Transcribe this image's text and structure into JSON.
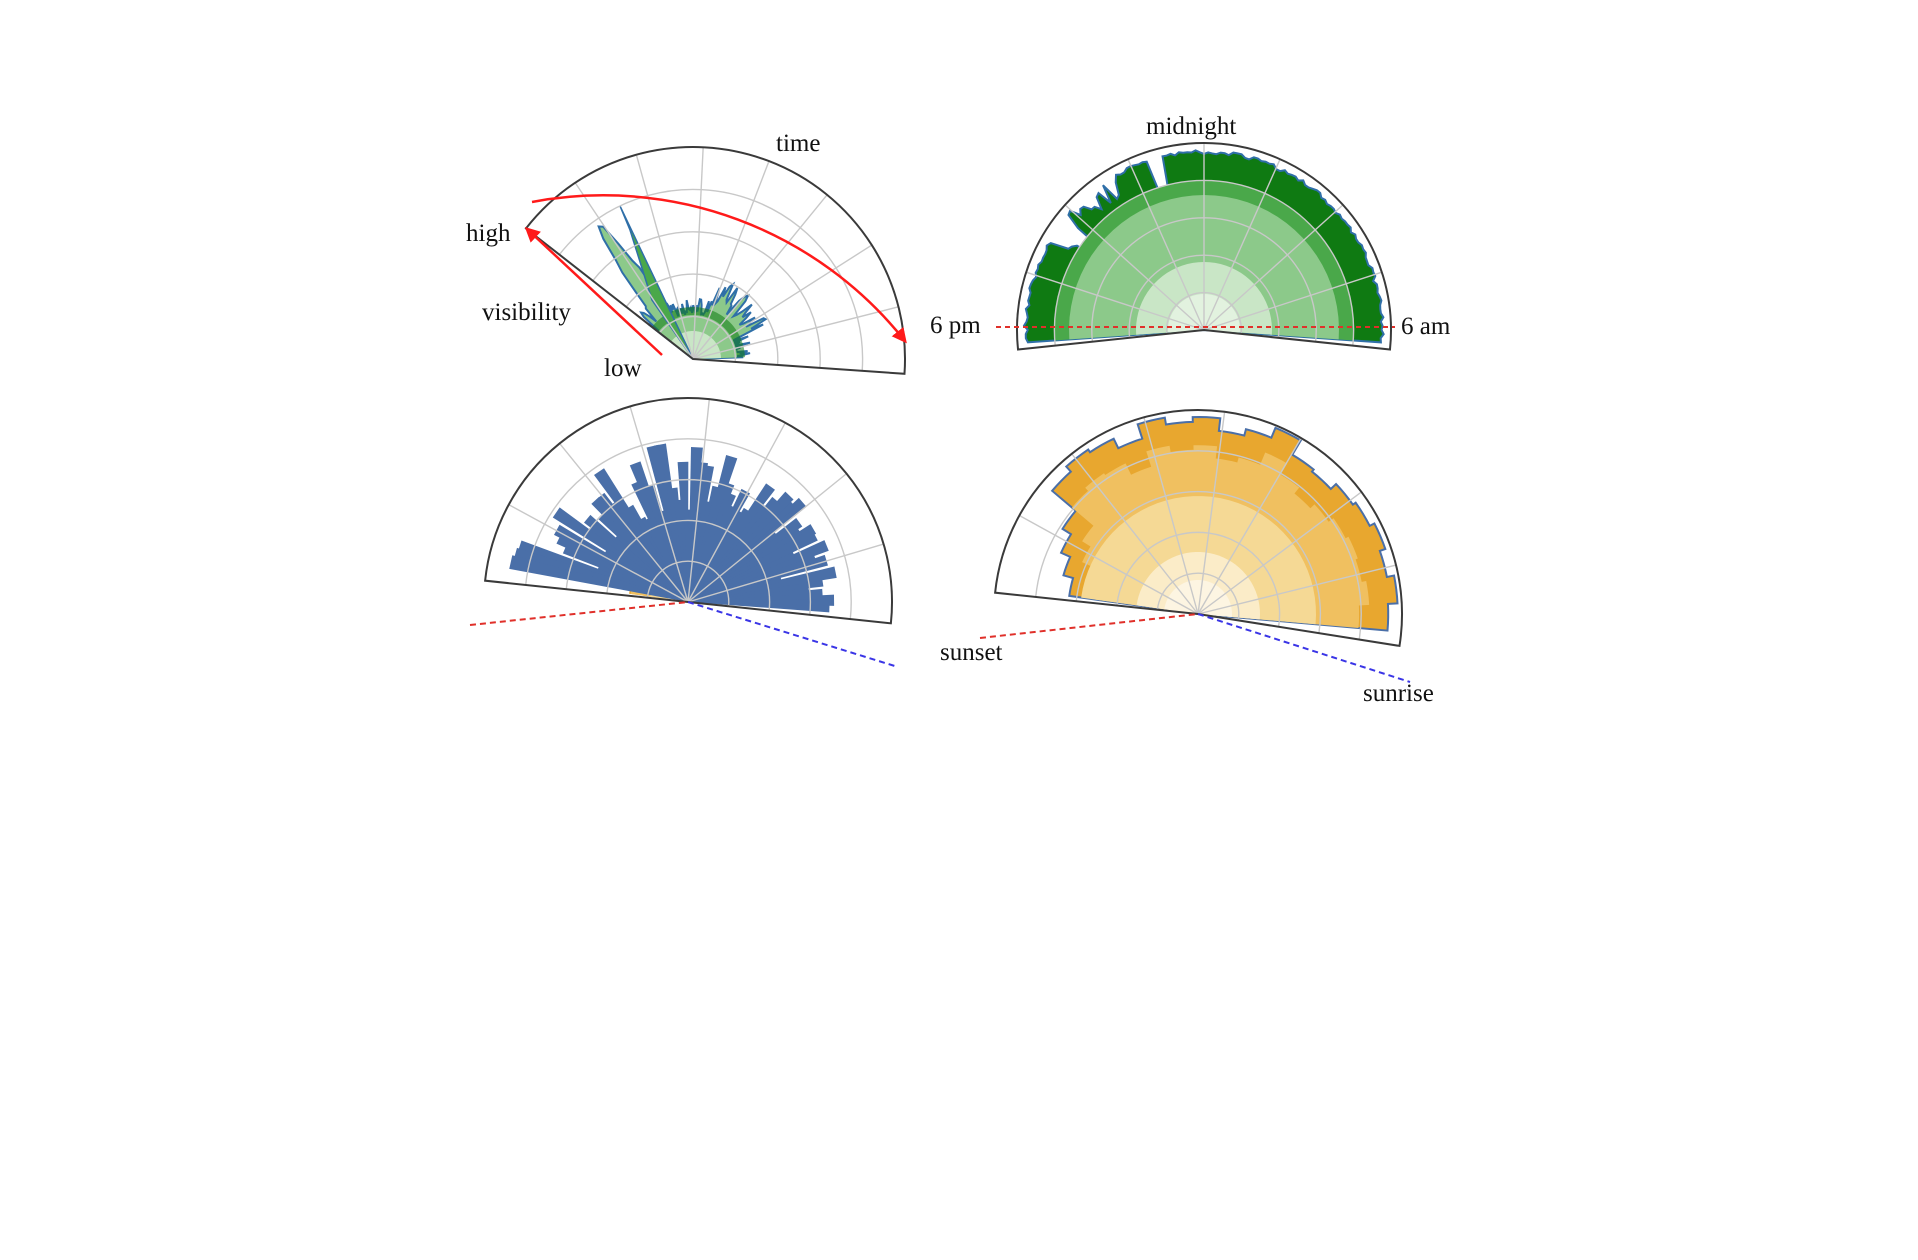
{
  "annotations": {
    "time": "time",
    "high": "high",
    "low": "low",
    "visibility": "visibility",
    "midnight": "midnight",
    "six_pm": "6 pm",
    "six_am": "6 am",
    "sunset": "sunset",
    "sunrise": "sunrise"
  },
  "colors": {
    "arrow_red": "#ff1a1a",
    "dashed_red": "#e0302a",
    "dashed_blue": "#3a35e6",
    "green_dark": "#0f7a12",
    "green_mid": "#4aa84a",
    "green_light": "#8cc98a",
    "green_pale": "#c9e6c6",
    "blue_series": "#4a6fa8",
    "orange_dark": "#e8a72f",
    "orange_mid": "#f0c060",
    "orange_light": "#f5d995",
    "orange_pale": "#fbecc8",
    "frame": "#3a3a3a",
    "grid": "#c8c8c8"
  },
  "panels": [
    {
      "name": "green-sparse-radial",
      "visibility_scale": "low-to-high radial",
      "time_axis": "angular"
    },
    {
      "name": "green-full-radial",
      "visibility_scale": "radial",
      "time_axis": "angular, 6 pm to 6 am"
    },
    {
      "name": "blue-orange-radial",
      "visibility_scale": "radial",
      "time_axis": "angular, sunset to sunrise"
    },
    {
      "name": "orange-full-radial",
      "visibility_scale": "radial",
      "time_axis": "angular, sunset to sunrise"
    }
  ]
}
